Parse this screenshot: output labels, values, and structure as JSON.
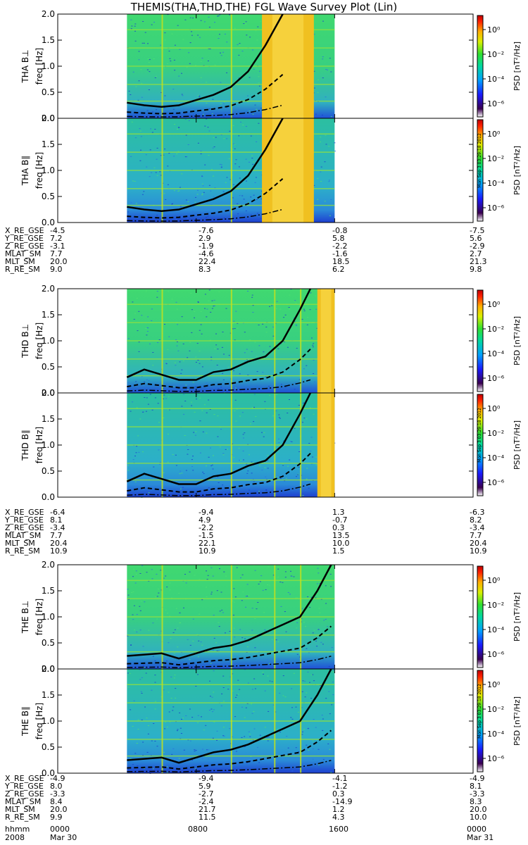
{
  "title": "THEMIS(THA,THD,THE) FGL Wave Survey Plot (Lin)",
  "colorbar_label": "PSD [nT²/Hz]",
  "colorbar_ticks": [
    "10⁰",
    "10⁻²",
    "10⁻⁴",
    "10⁻⁶"
  ],
  "axis_label": "freq [Hz]",
  "panel_stamp": "Mon Sep 3 03:29:18 2012",
  "x_ticks": [
    "0000",
    "0800",
    "1600",
    "0000"
  ],
  "footer": {
    "row1": "hhmm",
    "row2": "2008",
    "date_start": "Mar 30",
    "date_end": "Mar 31"
  },
  "chart_data": [
    {
      "type": "heatmap",
      "probe": "THA",
      "component": "B⊥",
      "ylabel": "THA B⊥",
      "ylim": [
        0,
        2.0
      ],
      "y_ticks": [
        "0.0",
        "0.5",
        "1.0",
        "1.5",
        "2.0"
      ],
      "data_window_hours": [
        4,
        16
      ],
      "storm_band_hours": [
        11.8,
        14.8
      ],
      "gyro_line": {
        "x": [
          4,
          5,
          6,
          7,
          7.5,
          8,
          9,
          10,
          11,
          12,
          13
        ],
        "y": [
          0.3,
          0.25,
          0.22,
          0.25,
          0.3,
          0.35,
          0.45,
          0.6,
          0.9,
          1.4,
          2.1
        ]
      }
    },
    {
      "type": "heatmap",
      "probe": "THA",
      "component": "B∥",
      "ylabel": "THA B∥",
      "ylim": [
        0,
        2.0
      ],
      "y_ticks": [
        "0.0",
        "0.5",
        "1.0",
        "1.5",
        "2.0"
      ],
      "data_window_hours": [
        4,
        16
      ],
      "storm_band_hours": [
        11.8,
        14.8
      ],
      "gyro_line": {
        "x": [
          4,
          5,
          6,
          7,
          7.5,
          8,
          9,
          10,
          11,
          12,
          13
        ],
        "y": [
          0.3,
          0.25,
          0.22,
          0.25,
          0.3,
          0.35,
          0.45,
          0.6,
          0.9,
          1.4,
          2.1
        ]
      }
    },
    {
      "type": "heatmap",
      "probe": "THD",
      "component": "B⊥",
      "ylabel": "THD B⊥",
      "ylim": [
        0,
        2.0
      ],
      "y_ticks": [
        "0.0",
        "0.5",
        "1.0",
        "1.5",
        "2.0"
      ],
      "data_window_hours": [
        4,
        16
      ],
      "storm_band_hours": [
        15,
        16
      ],
      "gyro_line": {
        "x": [
          4,
          5,
          6,
          7,
          8,
          9,
          10,
          11,
          12,
          13,
          14,
          14.6
        ],
        "y": [
          0.3,
          0.45,
          0.35,
          0.25,
          0.25,
          0.4,
          0.45,
          0.6,
          0.7,
          1.0,
          1.6,
          2.1
        ]
      }
    },
    {
      "type": "heatmap",
      "probe": "THD",
      "component": "B∥",
      "ylabel": "THD B∥",
      "ylim": [
        0,
        2.0
      ],
      "y_ticks": [
        "0.0",
        "0.5",
        "1.0",
        "1.5",
        "2.0"
      ],
      "data_window_hours": [
        4,
        16
      ],
      "storm_band_hours": [
        15,
        16
      ],
      "gyro_line": {
        "x": [
          4,
          5,
          6,
          7,
          8,
          9,
          10,
          11,
          12,
          13,
          14,
          14.6
        ],
        "y": [
          0.3,
          0.45,
          0.35,
          0.25,
          0.25,
          0.4,
          0.45,
          0.6,
          0.7,
          1.0,
          1.6,
          2.1
        ]
      }
    },
    {
      "type": "heatmap",
      "probe": "THE",
      "component": "B⊥",
      "ylabel": "THE B⊥",
      "ylim": [
        0,
        2.0
      ],
      "y_ticks": [
        "0.0",
        "0.5",
        "1.0",
        "1.5",
        "2.0"
      ],
      "data_window_hours": [
        4,
        16
      ],
      "storm_band_hours": null,
      "gyro_line": {
        "x": [
          4,
          6,
          7,
          8,
          9,
          10,
          11,
          12,
          13,
          14,
          15,
          15.8
        ],
        "y": [
          0.25,
          0.3,
          0.2,
          0.3,
          0.4,
          0.45,
          0.55,
          0.7,
          0.85,
          1.0,
          1.5,
          2.05
        ]
      }
    },
    {
      "type": "heatmap",
      "probe": "THE",
      "component": "B∥",
      "ylabel": "THE B∥",
      "ylim": [
        0,
        2.0
      ],
      "y_ticks": [
        "0.0",
        "0.5",
        "1.0",
        "1.5",
        "2.0"
      ],
      "data_window_hours": [
        4,
        16
      ],
      "storm_band_hours": null,
      "gyro_line": {
        "x": [
          4,
          6,
          7,
          8,
          9,
          10,
          11,
          12,
          13,
          14,
          15,
          15.8
        ],
        "y": [
          0.25,
          0.3,
          0.2,
          0.3,
          0.4,
          0.45,
          0.55,
          0.7,
          0.85,
          1.0,
          1.5,
          2.05
        ]
      }
    }
  ],
  "ephemeris": [
    {
      "rows": [
        {
          "label": "X_RE_GSE",
          "values": [
            "-4.5",
            "-7.6",
            "-0.8",
            "-7.5"
          ]
        },
        {
          "label": "Y_RE_GSE",
          "values": [
            "7.2",
            "2.9",
            "5.8",
            "5.6"
          ]
        },
        {
          "label": "Z_RE_GSE",
          "values": [
            "-3.1",
            "-1.9",
            "-2.2",
            "-2.9"
          ]
        },
        {
          "label": "MLAT_SM",
          "values": [
            "7.7",
            "-4.6",
            "-1.6",
            "2.7"
          ]
        },
        {
          "label": "MLT_SM",
          "values": [
            "20.0",
            "22.4",
            "18.5",
            "21.3"
          ]
        },
        {
          "label": "R_RE_SM",
          "values": [
            "9.0",
            "8.3",
            "6.2",
            "9.8"
          ]
        }
      ]
    },
    {
      "rows": [
        {
          "label": "X_RE_GSE",
          "values": [
            "-6.4",
            "-9.4",
            "1.3",
            "-6.3"
          ]
        },
        {
          "label": "Y_RE_GSE",
          "values": [
            "8.1",
            "4.9",
            "-0.7",
            "8.2"
          ]
        },
        {
          "label": "Z_RE_GSE",
          "values": [
            "-3.4",
            "-2.2",
            "0.3",
            "-3.4"
          ]
        },
        {
          "label": "MLAT_SM",
          "values": [
            "7.7",
            "-1.5",
            "13.5",
            "7.7"
          ]
        },
        {
          "label": "MLT_SM",
          "values": [
            "20.4",
            "22.1",
            "10.0",
            "20.4"
          ]
        },
        {
          "label": "R_RE_SM",
          "values": [
            "10.9",
            "10.9",
            "1.5",
            "10.9"
          ]
        }
      ]
    },
    {
      "rows": [
        {
          "label": "X_RE_GSE",
          "values": [
            "-4.9",
            "-9.4",
            "-4.1",
            "-4.9"
          ]
        },
        {
          "label": "Y_RE_GSE",
          "values": [
            "8.0",
            "5.9",
            "-1.2",
            "8.1"
          ]
        },
        {
          "label": "Z_RE_GSE",
          "values": [
            "-3.3",
            "-2.7",
            "0.3",
            "-3.3"
          ]
        },
        {
          "label": "MLAT_SM",
          "values": [
            "8.4",
            "-2.4",
            "-14.9",
            "8.3"
          ]
        },
        {
          "label": "MLT_SM",
          "values": [
            "20.0",
            "21.7",
            "1.2",
            "20.0"
          ]
        },
        {
          "label": "R_RE_SM",
          "values": [
            "9.9",
            "11.5",
            "4.3",
            "10.0"
          ]
        }
      ]
    }
  ]
}
